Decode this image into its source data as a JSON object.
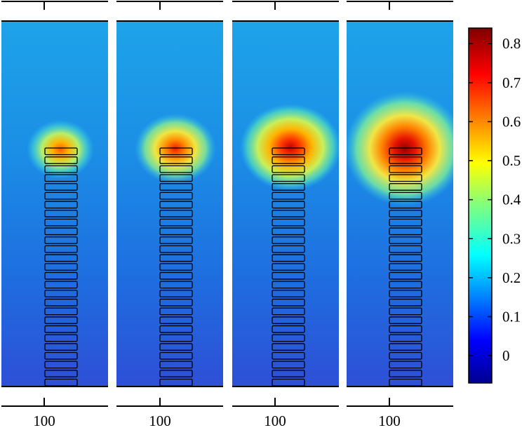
{
  "panels": [
    {
      "name": "panel-1",
      "bottom_tick_label": "100",
      "hotspot_intensity": 0.55
    },
    {
      "name": "panel-2",
      "bottom_tick_label": "100",
      "hotspot_intensity": 0.65
    },
    {
      "name": "panel-3",
      "bottom_tick_label": "100",
      "hotspot_intensity": 0.78
    },
    {
      "name": "panel-4",
      "bottom_tick_label": "100",
      "hotspot_intensity": 0.85
    }
  ],
  "element_stack": {
    "count": 27
  },
  "colorbar": {
    "range": [
      -0.07,
      0.84
    ],
    "tick_labels": [
      "0.8",
      "0.7",
      "0.6",
      "0.5",
      "0.4",
      "0.3",
      "0.2",
      "0.1",
      "0"
    ],
    "tick_values": [
      0.8,
      0.7,
      0.6,
      0.5,
      0.4,
      0.3,
      0.2,
      0.1,
      0.0
    ],
    "colormap": "jet"
  }
}
